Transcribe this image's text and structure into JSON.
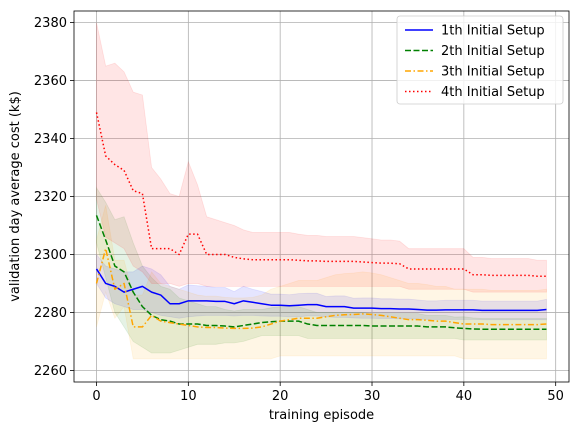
{
  "chart_data": {
    "type": "line",
    "title": "",
    "xlabel": "training episode",
    "ylabel": "validation day average cost (k$)",
    "xlim": [
      -2.45,
      51.45
    ],
    "ylim": [
      2256,
      2384
    ],
    "xticks": [
      0,
      10,
      20,
      30,
      40,
      50
    ],
    "yticks": [
      2260,
      2280,
      2300,
      2320,
      2340,
      2360,
      2380
    ],
    "grid": true,
    "legend_position": "upper right",
    "x": [
      0,
      1,
      2,
      3,
      4,
      5,
      6,
      7,
      8,
      9,
      10,
      11,
      12,
      13,
      14,
      15,
      16,
      17,
      18,
      19,
      20,
      21,
      22,
      23,
      24,
      25,
      26,
      27,
      28,
      29,
      30,
      31,
      32,
      33,
      34,
      35,
      36,
      37,
      38,
      39,
      40,
      41,
      42,
      43,
      44,
      45,
      46,
      47,
      48,
      49
    ],
    "series": [
      {
        "name": "1th Initial Setup",
        "color": "#0000ff",
        "dash": "solid",
        "values": [
          2295,
          2290,
          2289,
          2287,
          2288,
          2289,
          2287,
          2286,
          2283,
          2283,
          2284,
          2284,
          2284,
          2283.8,
          2283.8,
          2283,
          2284,
          2283.5,
          2283,
          2282.5,
          2282.5,
          2282.3,
          2282.5,
          2282.7,
          2282.7,
          2282,
          2282,
          2282,
          2281.5,
          2281.5,
          2281.5,
          2281.3,
          2281.3,
          2281.2,
          2281.2,
          2281,
          2280.8,
          2280.8,
          2280.9,
          2280.9,
          2280.9,
          2280.9,
          2280.7,
          2280.7,
          2280.7,
          2280.7,
          2280.7,
          2280.7,
          2280.7,
          2281
        ]
      },
      {
        "name": "2th Initial Setup",
        "color": "#008000",
        "dash": "dashed",
        "values": [
          2313.5,
          2305,
          2296,
          2294,
          2287,
          2282,
          2279,
          2277.5,
          2277,
          2276,
          2276,
          2276,
          2275.5,
          2275.5,
          2275.3,
          2275,
          2275.5,
          2276,
          2276.5,
          2276.8,
          2277,
          2277,
          2277,
          2276,
          2275.5,
          2275.5,
          2275.5,
          2275.5,
          2275.5,
          2275.5,
          2275.3,
          2275.3,
          2275.3,
          2275.3,
          2275.3,
          2275.3,
          2275,
          2275,
          2275,
          2274.7,
          2274.5,
          2274.3,
          2274.2,
          2274.2,
          2274.2,
          2274.2,
          2274.2,
          2274.2,
          2274.2,
          2274.2
        ]
      },
      {
        "name": "3th Initial Setup",
        "color": "#ffa500",
        "dash": "dashdot",
        "values": [
          2290,
          2302,
          2288,
          2290,
          2275,
          2275,
          2279,
          2277,
          2276.5,
          2276,
          2275.5,
          2275,
          2274.8,
          2274.8,
          2274.6,
          2274.5,
          2274.5,
          2274.6,
          2275,
          2276,
          2277,
          2277.5,
          2278,
          2278,
          2278,
          2278.5,
          2279,
          2279.2,
          2279.3,
          2279.5,
          2279.3,
          2279,
          2278.5,
          2278,
          2277.5,
          2277.5,
          2277.3,
          2277,
          2277,
          2276.5,
          2276,
          2276,
          2276,
          2275.8,
          2275.8,
          2275.8,
          2275.8,
          2275.8,
          2275.8,
          2276
        ]
      },
      {
        "name": "4th Initial Setup",
        "color": "#ff0000",
        "dash": "dotted",
        "values": [
          2349,
          2334,
          2331,
          2329,
          2322,
          2321,
          2302,
          2302,
          2302,
          2300,
          2307,
          2307,
          2300,
          2300,
          2300,
          2299,
          2298.5,
          2298.2,
          2298.2,
          2298.2,
          2298.2,
          2298.2,
          2298,
          2297.8,
          2297.8,
          2297.6,
          2297.6,
          2297.6,
          2297.6,
          2297.4,
          2297.2,
          2297,
          2297,
          2296.8,
          2295,
          2295,
          2295,
          2295,
          2295,
          2295,
          2295,
          2293,
          2293,
          2292.8,
          2292.8,
          2292.8,
          2292.8,
          2292.8,
          2292.5,
          2292.5
        ]
      }
    ],
    "bands": [
      {
        "series": "1th Initial Setup",
        "fill": "#0000ff",
        "lower": [
          2290,
          2285,
          2283,
          2282,
          2281,
          2281,
          2280,
          2279,
          2278.5,
          2278,
          2278.5,
          2278.8,
          2279,
          2279,
          2279,
          2278.8,
          2279,
          2279,
          2278.8,
          2278.7,
          2278.7,
          2278.5,
          2278.5,
          2278.8,
          2278.8,
          2278.5,
          2278.3,
          2278.3,
          2278.1,
          2278,
          2278,
          2277.9,
          2277.9,
          2277.8,
          2277.8,
          2277.7,
          2277.6,
          2277.6,
          2277.6,
          2277.6,
          2277.6,
          2277.6,
          2277.5,
          2277.5,
          2277.5,
          2277.5,
          2277.5,
          2277.5,
          2277.5,
          2277.5
        ],
        "upper": [
          2300,
          2296,
          2295,
          2294,
          2294,
          2296,
          2295,
          2293,
          2289,
          2288,
          2289.5,
          2289.2,
          2289,
          2288.6,
          2288.6,
          2287.2,
          2289,
          2288,
          2287.2,
          2286.3,
          2286.3,
          2286.1,
          2286.5,
          2286.6,
          2286.6,
          2285.5,
          2285.7,
          2285.7,
          2284.9,
          2285,
          2285,
          2284.7,
          2284.7,
          2284.6,
          2284.6,
          2284.3,
          2284,
          2284,
          2284.2,
          2284.2,
          2284.2,
          2284.2,
          2283.9,
          2283.9,
          2283.9,
          2283.9,
          2283.9,
          2283.9,
          2283.9,
          2284.5
        ]
      },
      {
        "series": "2th Initial Setup",
        "fill": "#008000",
        "lower": [
          2304,
          2292,
          2280,
          2275,
          2270,
          2268,
          2266,
          2266,
          2266,
          2267,
          2268,
          2269,
          2269,
          2269,
          2269.5,
          2269.5,
          2270,
          2271,
          2272,
          2272,
          2272,
          2272,
          2272,
          2271,
          2271,
          2271,
          2271,
          2271,
          2271,
          2271,
          2271,
          2271,
          2271,
          2271,
          2271,
          2271,
          2271,
          2271,
          2271,
          2271,
          2270.5,
          2270.5,
          2270.5,
          2270.5,
          2270.5,
          2270.5,
          2270.5,
          2270.5,
          2270.5,
          2270.5
        ],
        "upper": [
          2323,
          2318,
          2312,
          2313,
          2304,
          2296,
          2292,
          2289,
          2288,
          2285,
          2284,
          2283,
          2282,
          2282,
          2281,
          2280.5,
          2281,
          2281,
          2281,
          2281.6,
          2282,
          2282,
          2282,
          2281,
          2280,
          2280,
          2280,
          2280,
          2280,
          2280,
          2279.6,
          2279.6,
          2279.6,
          2279.6,
          2279.6,
          2279.6,
          2279,
          2279,
          2279,
          2278.4,
          2278.5,
          2278.1,
          2277.9,
          2277.9,
          2277.9,
          2277.9,
          2277.9,
          2277.9,
          2277.9,
          2277.9
        ]
      },
      {
        "series": "3th Initial Setup",
        "fill": "#ffa500",
        "lower": [
          2275,
          2287,
          2278,
          2282,
          2264,
          2264,
          2264,
          2264,
          2264,
          2264,
          2264,
          2264,
          2264,
          2264,
          2264,
          2264,
          2264,
          2264,
          2264,
          2264,
          2265,
          2265,
          2265,
          2265,
          2265,
          2265,
          2265,
          2265,
          2265,
          2265,
          2265,
          2265,
          2265,
          2265,
          2265,
          2265,
          2265,
          2265,
          2265,
          2265,
          2264,
          2264,
          2264,
          2264,
          2264,
          2264,
          2264,
          2264,
          2264,
          2264
        ],
        "upper": [
          2305,
          2317,
          2298,
          2298,
          2286,
          2286,
          2294,
          2290,
          2289,
          2288,
          2287,
          2286,
          2285.6,
          2285.6,
          2285.2,
          2285,
          2285,
          2285.2,
          2286,
          2288,
          2289,
          2290,
          2291,
          2291,
          2291,
          2292,
          2293,
          2293.4,
          2293.6,
          2294,
          2293.6,
          2293,
          2292,
          2291,
          2290,
          2290,
          2289.6,
          2289,
          2289,
          2288,
          2288,
          2288,
          2288,
          2287.6,
          2287.6,
          2287.6,
          2287.6,
          2287.6,
          2287.6,
          2288
        ]
      },
      {
        "series": "4th Initial Setup",
        "fill": "#ff0000",
        "lower": [
          2319,
          2306,
          2304,
          2302,
          2296,
          2294,
          2290,
          2290,
          2290,
          2289,
          2290,
          2290,
          2289,
          2289,
          2289,
          2289,
          2289,
          2289,
          2289,
          2289,
          2289,
          2289,
          2289,
          2289,
          2289,
          2289,
          2289,
          2289,
          2289,
          2289,
          2289,
          2289,
          2289,
          2289,
          2288,
          2288,
          2288,
          2288,
          2288,
          2288,
          2288,
          2287,
          2287,
          2287,
          2287,
          2287,
          2287,
          2287,
          2287,
          2287
        ],
        "upper": [
          2380,
          2365,
          2366,
          2363,
          2356,
          2355,
          2330,
          2326,
          2321,
          2320,
          2332,
          2324,
          2313,
          2312,
          2311,
          2310,
          2308.5,
          2307.6,
          2307.6,
          2307.6,
          2307.6,
          2307.6,
          2307,
          2306.6,
          2306.6,
          2306.2,
          2306.2,
          2306.2,
          2306.2,
          2305.8,
          2305.4,
          2305,
          2305,
          2304.6,
          2302,
          2302,
          2302,
          2302,
          2302,
          2302,
          2302,
          2299,
          2299,
          2298.6,
          2298.6,
          2298.6,
          2298.6,
          2298.6,
          2298,
          2298
        ]
      }
    ]
  }
}
